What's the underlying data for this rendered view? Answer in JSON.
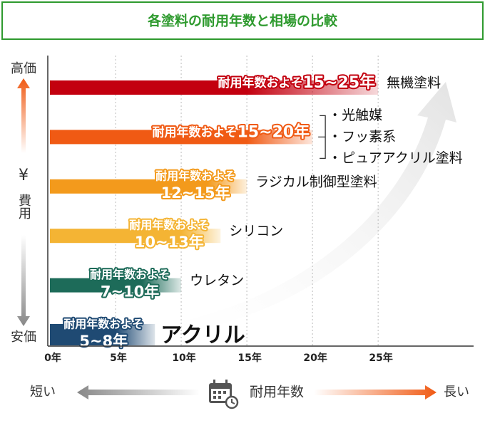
{
  "chart_data": {
    "type": "range-bar",
    "title": "各塗料の耐用年数と相場の比較",
    "categories": [
      "無機塗料",
      [
        "・光触媒",
        "・フッ素系",
        "・ピュアアクリル塗料"
      ],
      "ラジカル制御型塗料",
      "シリコン",
      "ウレタン",
      "アクリル"
    ],
    "low": [
      15,
      15,
      12,
      10,
      7,
      5
    ],
    "values": [
      25,
      20,
      15,
      13,
      10,
      8
    ],
    "label_prefix": "耐用年数およそ",
    "value_labels": [
      "15~25年",
      "15~20年",
      "12~15年",
      "10~13年",
      "7~10年",
      "5~8年"
    ],
    "colors": [
      "#c3000f",
      "#f05a14",
      "#f39a1c",
      "#f4b434",
      "#1d6b59",
      "#1f4a73"
    ],
    "xlim": [
      0,
      32
    ],
    "xticks": [
      {
        "value": 0,
        "label": "0年"
      },
      {
        "value": 5,
        "label": "5年"
      },
      {
        "value": 10,
        "label": "10年"
      },
      {
        "value": 15,
        "label": "15年"
      },
      {
        "value": 20,
        "label": "20年"
      },
      {
        "value": 25,
        "label": "25年"
      }
    ],
    "grid": true,
    "y_axis": {
      "top": "高価",
      "symbol": "¥",
      "label": "費用",
      "bottom": "安価"
    },
    "x_axis": {
      "short": "短い",
      "label": "耐用年数",
      "long": "長い"
    }
  }
}
